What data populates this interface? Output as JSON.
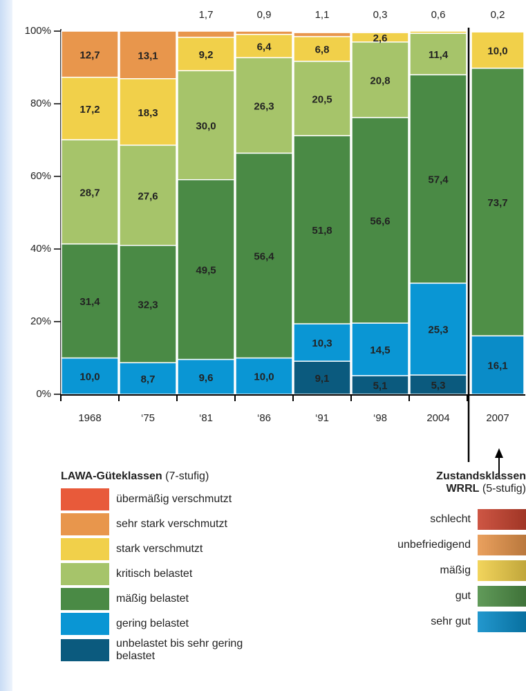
{
  "chart_data": {
    "type": "stacked_bar",
    "categories": [
      "1968",
      "‘75",
      "‘81",
      "‘86",
      "‘91",
      "‘98",
      "2004",
      "2007"
    ],
    "ylim": [
      0,
      100
    ],
    "yticks": [
      {
        "value": 0,
        "label": "0%"
      },
      {
        "value": 20,
        "label": "20%"
      },
      {
        "value": 40,
        "label": "40%"
      },
      {
        "value": 60,
        "label": "60%"
      },
      {
        "value": 80,
        "label": "80%"
      },
      {
        "value": 100,
        "label": "100%"
      }
    ],
    "legend_lawa": {
      "title": "LAWA-Güteklassen",
      "subtitle": "(7-stufig)"
    },
    "legend_wrrl": {
      "title_lines": [
        "Zustandsklassen",
        "WRRL"
      ],
      "subtitle": "(5-stufig)"
    },
    "series": [
      {
        "name": "unbelastet bis sehr gering belastet",
        "group": "lawa",
        "color": "#0b5a7e",
        "values": [
          null,
          null,
          null,
          null,
          9.1,
          5.1,
          5.3,
          null
        ],
        "value_labels": [
          null,
          null,
          null,
          null,
          "9,1",
          "5,1",
          "5,3",
          null
        ]
      },
      {
        "name": "gering belastet",
        "group": "lawa",
        "color": "#0a96d4",
        "values": [
          10.0,
          8.7,
          9.6,
          10.0,
          10.3,
          14.5,
          25.3,
          null
        ],
        "value_labels": [
          "10,0",
          "8,7",
          "9,6",
          "10,0",
          "10,3",
          "14,5",
          "25,3",
          null
        ]
      },
      {
        "name": "mäßig belastet",
        "group": "lawa",
        "color": "#4a8a45",
        "values": [
          31.4,
          32.3,
          49.5,
          56.4,
          51.8,
          56.6,
          57.4,
          null
        ],
        "value_labels": [
          "31,4",
          "32,3",
          "49,5",
          "56,4",
          "51,8",
          "56,6",
          "57,4",
          null
        ]
      },
      {
        "name": "kritisch belastet",
        "group": "lawa",
        "color": "#a6c46a",
        "values": [
          28.7,
          27.6,
          30.0,
          26.3,
          20.5,
          20.8,
          11.4,
          null
        ],
        "value_labels": [
          "28,7",
          "27,6",
          "30,0",
          "26,3",
          "20,5",
          "20,8",
          "11,4",
          null
        ]
      },
      {
        "name": "stark verschmutzt",
        "group": "lawa",
        "color": "#f1d04a",
        "values": [
          17.2,
          18.3,
          9.2,
          6.4,
          6.8,
          2.6,
          0.6,
          null
        ],
        "value_labels": [
          "17,2",
          "18,3",
          "9,2",
          "6,4",
          "6,8",
          "2,6",
          "0,6",
          null
        ]
      },
      {
        "name": "sehr stark verschmutzt",
        "group": "lawa",
        "color": "#e8964c",
        "values": [
          12.7,
          13.1,
          1.7,
          0.9,
          1.1,
          0.3,
          null,
          null
        ],
        "value_labels": [
          "12,7",
          "13,1",
          "1,7",
          "0,9",
          "1,1",
          "0,3",
          null,
          null
        ]
      },
      {
        "name": "übermäßig verschmutzt",
        "group": "lawa",
        "color": "#e85a3a",
        "values": [
          null,
          null,
          null,
          null,
          null,
          null,
          null,
          null
        ],
        "value_labels": [
          null,
          null,
          null,
          null,
          null,
          null,
          null,
          null
        ]
      },
      {
        "name": "sehr gut",
        "group": "wrrl",
        "color": "#0a8cc8",
        "values": [
          null,
          null,
          null,
          null,
          null,
          null,
          null,
          16.1
        ],
        "value_labels": [
          null,
          null,
          null,
          null,
          null,
          null,
          null,
          "16,1"
        ]
      },
      {
        "name": "gut",
        "group": "wrrl",
        "color": "#4f8f47",
        "values": [
          null,
          null,
          null,
          null,
          null,
          null,
          null,
          73.7
        ],
        "value_labels": [
          null,
          null,
          null,
          null,
          null,
          null,
          null,
          "73,7"
        ]
      },
      {
        "name": "mäßig",
        "group": "wrrl",
        "color": "#f1d04a",
        "values": [
          null,
          null,
          null,
          null,
          null,
          null,
          null,
          10.0
        ],
        "value_labels": [
          null,
          null,
          null,
          null,
          null,
          null,
          null,
          "10,0"
        ]
      },
      {
        "name": "unbefriedigend",
        "group": "wrrl",
        "color": "#e8964c",
        "values": [
          null,
          null,
          null,
          null,
          null,
          null,
          null,
          0.2
        ],
        "value_labels": [
          null,
          null,
          null,
          null,
          null,
          null,
          null,
          "0,2"
        ]
      },
      {
        "name": "schlecht",
        "group": "wrrl",
        "color": "#c8432f",
        "values": [
          null,
          null,
          null,
          null,
          null,
          null,
          null,
          null
        ],
        "value_labels": [
          null,
          null,
          null,
          null,
          null,
          null,
          null,
          null
        ]
      }
    ]
  }
}
